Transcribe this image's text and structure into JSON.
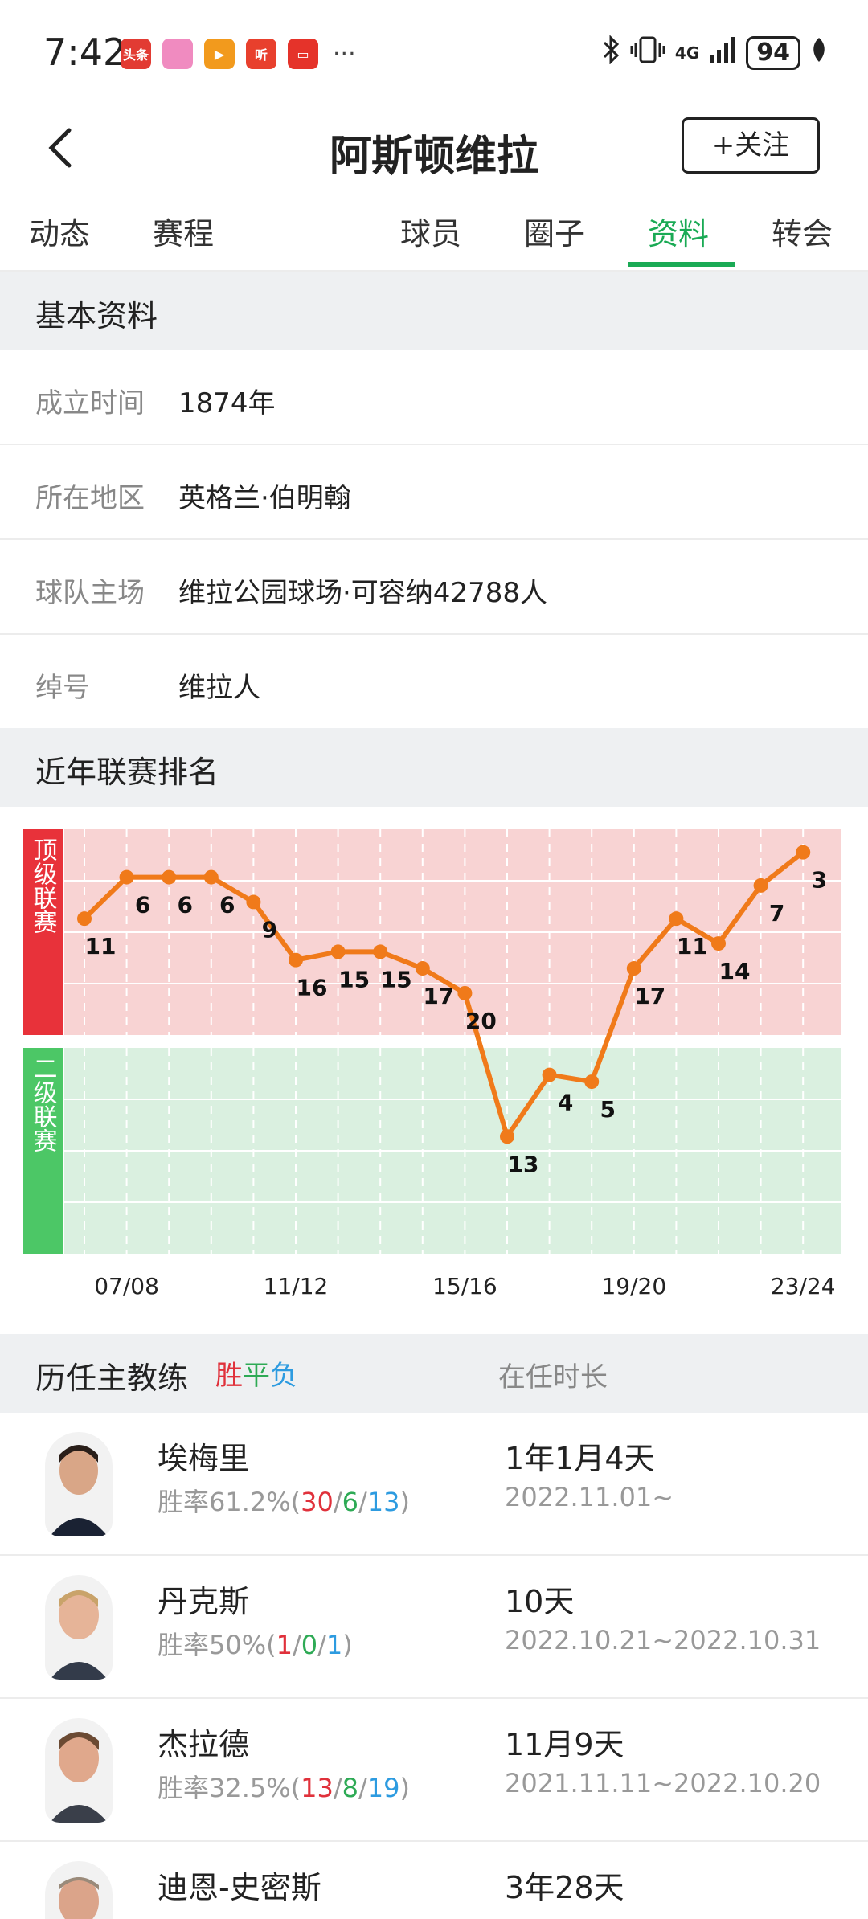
{
  "status_bar": {
    "time": "7:42",
    "app_icons": [
      {
        "name": "toutiao-icon",
        "text": "头条",
        "color": "#e23b33"
      },
      {
        "name": "pink-app-icon",
        "text": "",
        "color": "#f08bc0"
      },
      {
        "name": "video-app-icon",
        "text": "▶",
        "color": "#f29a1d"
      },
      {
        "name": "listen-app-icon",
        "text": "听",
        "color": "#e8402d"
      },
      {
        "name": "red-app-icon",
        "text": "▭",
        "color": "#e5332a"
      }
    ],
    "more": "···",
    "network": "4G",
    "battery": "94"
  },
  "header": {
    "title": "阿斯顿维拉",
    "follow_label": "+关注"
  },
  "tabs": [
    {
      "label": "动态",
      "active": false
    },
    {
      "label": "赛程",
      "active": false
    },
    {
      "label": "球员",
      "active": false
    },
    {
      "label": "圈子",
      "active": false
    },
    {
      "label": "资料",
      "active": true
    },
    {
      "label": "转会",
      "active": false
    }
  ],
  "basic_info": {
    "title": "基本资料",
    "rows": [
      {
        "label": "成立时间",
        "value": "1874年"
      },
      {
        "label": "所在地区",
        "value": "英格兰·伯明翰"
      },
      {
        "label": "球队主场",
        "value": "维拉公园球场·可容纳42788人"
      },
      {
        "label": "绰号",
        "value": "维拉人"
      }
    ]
  },
  "ranking": {
    "title": "近年联赛排名"
  },
  "chart_data": {
    "type": "line",
    "bands": [
      {
        "label": "顶级联赛",
        "color": "#e8323a",
        "bg": "#f8d3d3"
      },
      {
        "label": "二级联赛",
        "color": "#4cc766",
        "bg": "#daf0e0"
      }
    ],
    "x": [
      "06/07",
      "07/08",
      "08/09",
      "09/10",
      "10/11",
      "11/12",
      "12/13",
      "13/14",
      "14/15",
      "15/16",
      "16/17",
      "17/18",
      "18/19",
      "19/20",
      "20/21",
      "21/22",
      "22/23",
      "23/24"
    ],
    "x_tick_labels": [
      "07/08",
      "11/12",
      "15/16",
      "19/20",
      "23/24"
    ],
    "series": [
      {
        "league": [
          "top",
          "top",
          "top",
          "top",
          "top",
          "top",
          "top",
          "top",
          "top",
          "top",
          "second",
          "second",
          "second",
          "top",
          "top",
          "top",
          "top",
          "top"
        ],
        "values": [
          11,
          6,
          6,
          6,
          9,
          16,
          15,
          15,
          17,
          20,
          13,
          4,
          5,
          17,
          11,
          14,
          7,
          3
        ],
        "color": "#f07a1a"
      }
    ]
  },
  "coaches": {
    "title": "历任主教练",
    "legend": {
      "win": "胜",
      "draw": "平",
      "loss": "负"
    },
    "tenure_header": "在任时长",
    "rate_prefix": "胜率",
    "items": [
      {
        "name": "埃梅里",
        "rate": "61.2%",
        "w": "30",
        "d": "6",
        "l": "13",
        "tenure": "1年1月4天",
        "dates": "2022.11.01~"
      },
      {
        "name": "丹克斯",
        "rate": "50%",
        "w": "1",
        "d": "0",
        "l": "1",
        "tenure": "10天",
        "dates": "2022.10.21~2022.10.31"
      },
      {
        "name": "杰拉德",
        "rate": "32.5%",
        "w": "13",
        "d": "8",
        "l": "19",
        "tenure": "11月9天",
        "dates": "2021.11.11~2022.10.20"
      },
      {
        "name": "迪恩-史密斯",
        "rate": "",
        "w": "",
        "d": "",
        "l": "",
        "tenure": "3年28天",
        "dates": ""
      }
    ]
  }
}
